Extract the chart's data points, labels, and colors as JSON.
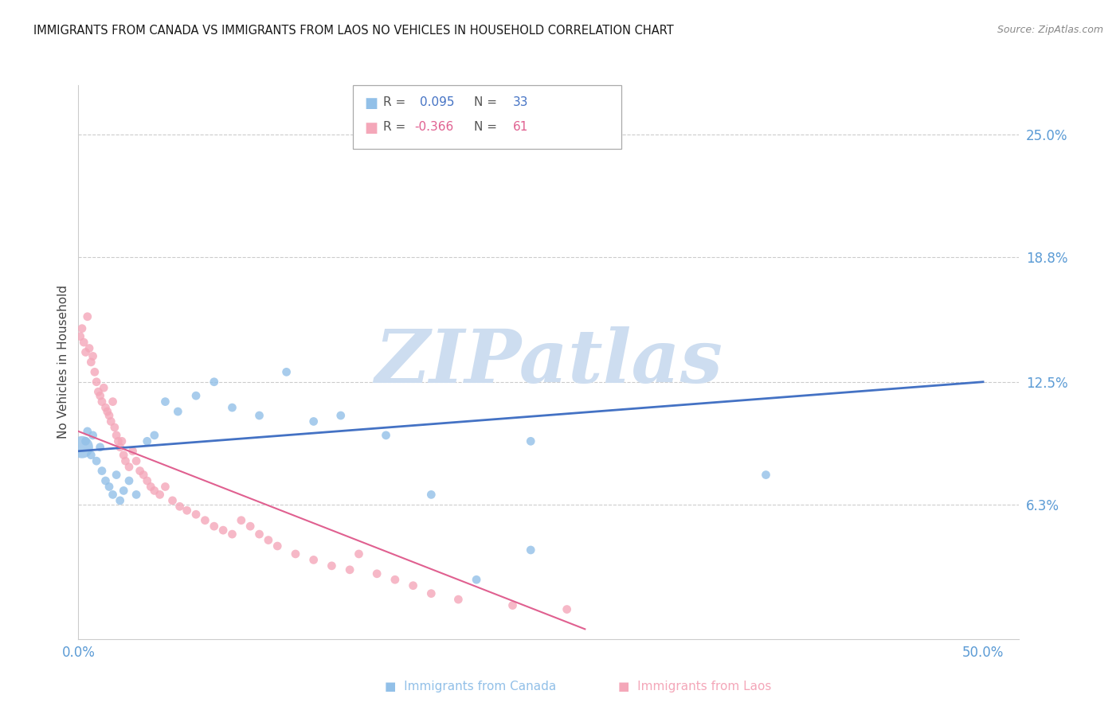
{
  "title": "IMMIGRANTS FROM CANADA VS IMMIGRANTS FROM LAOS NO VEHICLES IN HOUSEHOLD CORRELATION CHART",
  "source": "Source: ZipAtlas.com",
  "ylabel": "No Vehicles in Household",
  "y_tick_labels": [
    "25.0%",
    "18.8%",
    "12.5%",
    "6.3%"
  ],
  "y_tick_values": [
    0.25,
    0.188,
    0.125,
    0.063
  ],
  "x_tick_labels": [
    "0.0%",
    "",
    "",
    "",
    "",
    "50.0%"
  ],
  "x_tick_values": [
    0.0,
    0.1,
    0.2,
    0.3,
    0.4,
    0.5
  ],
  "xlim": [
    0.0,
    0.52
  ],
  "ylim": [
    -0.005,
    0.275
  ],
  "R_canada": 0.095,
  "N_canada": 33,
  "R_laos": -0.366,
  "N_laos": 61,
  "color_canada": "#92c0e8",
  "color_laos": "#f4a7b9",
  "line_color_canada": "#4472c4",
  "line_color_laos": "#e06090",
  "watermark": "ZIPatlas",
  "watermark_color": "#cdddf0",
  "canada_x": [
    0.002,
    0.004,
    0.005,
    0.007,
    0.008,
    0.01,
    0.012,
    0.013,
    0.015,
    0.017,
    0.019,
    0.021,
    0.023,
    0.025,
    0.028,
    0.032,
    0.038,
    0.042,
    0.048,
    0.055,
    0.065,
    0.075,
    0.085,
    0.1,
    0.115,
    0.13,
    0.145,
    0.17,
    0.195,
    0.22,
    0.25,
    0.38,
    0.25
  ],
  "canada_y": [
    0.092,
    0.095,
    0.1,
    0.088,
    0.098,
    0.085,
    0.092,
    0.08,
    0.075,
    0.072,
    0.068,
    0.078,
    0.065,
    0.07,
    0.075,
    0.068,
    0.095,
    0.098,
    0.115,
    0.11,
    0.118,
    0.125,
    0.112,
    0.108,
    0.13,
    0.105,
    0.108,
    0.098,
    0.068,
    0.025,
    0.095,
    0.078,
    0.04
  ],
  "canada_sizes": [
    400,
    60,
    60,
    60,
    60,
    60,
    60,
    60,
    60,
    60,
    60,
    60,
    60,
    60,
    60,
    60,
    60,
    60,
    60,
    60,
    60,
    60,
    60,
    60,
    60,
    60,
    60,
    60,
    60,
    60,
    60,
    60,
    60
  ],
  "laos_x": [
    0.001,
    0.002,
    0.003,
    0.004,
    0.005,
    0.006,
    0.007,
    0.008,
    0.009,
    0.01,
    0.011,
    0.012,
    0.013,
    0.014,
    0.015,
    0.016,
    0.017,
    0.018,
    0.019,
    0.02,
    0.021,
    0.022,
    0.023,
    0.024,
    0.025,
    0.026,
    0.028,
    0.03,
    0.032,
    0.034,
    0.036,
    0.038,
    0.04,
    0.042,
    0.045,
    0.048,
    0.052,
    0.056,
    0.06,
    0.065,
    0.07,
    0.075,
    0.08,
    0.085,
    0.09,
    0.095,
    0.1,
    0.105,
    0.11,
    0.12,
    0.13,
    0.14,
    0.15,
    0.155,
    0.165,
    0.175,
    0.185,
    0.195,
    0.21,
    0.24,
    0.27
  ],
  "laos_y": [
    0.148,
    0.152,
    0.145,
    0.14,
    0.158,
    0.142,
    0.135,
    0.138,
    0.13,
    0.125,
    0.12,
    0.118,
    0.115,
    0.122,
    0.112,
    0.11,
    0.108,
    0.105,
    0.115,
    0.102,
    0.098,
    0.095,
    0.092,
    0.095,
    0.088,
    0.085,
    0.082,
    0.09,
    0.085,
    0.08,
    0.078,
    0.075,
    0.072,
    0.07,
    0.068,
    0.072,
    0.065,
    0.062,
    0.06,
    0.058,
    0.055,
    0.052,
    0.05,
    0.048,
    0.055,
    0.052,
    0.048,
    0.045,
    0.042,
    0.038,
    0.035,
    0.032,
    0.03,
    0.038,
    0.028,
    0.025,
    0.022,
    0.018,
    0.015,
    0.012,
    0.01
  ],
  "laos_sizes": [
    60,
    60,
    60,
    60,
    60,
    60,
    60,
    60,
    60,
    60,
    60,
    60,
    60,
    60,
    60,
    60,
    60,
    60,
    60,
    60,
    60,
    60,
    60,
    60,
    60,
    60,
    60,
    60,
    60,
    60,
    60,
    60,
    60,
    60,
    60,
    60,
    60,
    60,
    60,
    60,
    60,
    60,
    60,
    60,
    60,
    60,
    60,
    60,
    60,
    60,
    60,
    60,
    60,
    60,
    60,
    60,
    60,
    60,
    60,
    60,
    60
  ],
  "legend_canada_r": "0.095",
  "legend_canada_n": "33",
  "legend_laos_r": "-0.366",
  "legend_laos_n": "61",
  "canada_line_x": [
    0.0,
    0.5
  ],
  "canada_line_y": [
    0.09,
    0.125
  ],
  "laos_line_x": [
    0.0,
    0.28
  ],
  "laos_line_y": [
    0.1,
    0.0
  ]
}
